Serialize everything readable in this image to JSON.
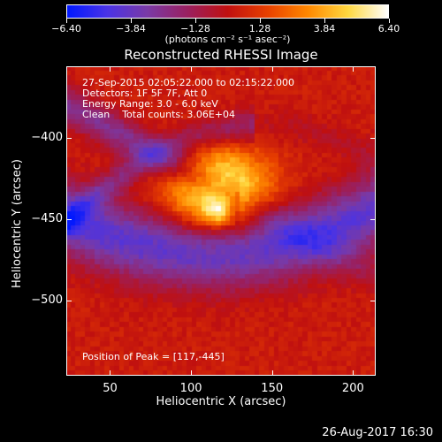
{
  "colorbar": {
    "ticks": [
      "−6.40",
      "−3.84",
      "−1.28",
      "1.28",
      "3.84",
      "6.40"
    ],
    "units_text": "(photons cm⁻² s⁻¹ asec⁻²)",
    "colors": [
      "#0018ff",
      "#4a33e6",
      "#7a3aa6",
      "#9a2060",
      "#c01010",
      "#e84000",
      "#ff8800",
      "#ffd840",
      "#ffffff"
    ]
  },
  "chart_data": {
    "type": "heatmap",
    "title": "Reconstructed RHESSI Image",
    "xlabel": "Heliocentric X (arcsec)",
    "ylabel": "Heliocentric Y (arcsec)",
    "xlim": [
      23,
      214
    ],
    "ylim": [
      -546,
      -356
    ],
    "xticks": [
      50,
      100,
      150,
      200
    ],
    "yticks": [
      -400,
      -450,
      -500
    ],
    "vrange": [
      -6.4,
      6.4
    ],
    "peak": [
      117,
      -445
    ],
    "annotations": [
      "27-Sep-2015 02:05:22.000 to 02:15:22.000",
      "Detectors: 1F 5F 7F, Att 0",
      "Energy Range: 3.0 - 6.0 keV",
      "Clean    Total counts: 3.06E+04"
    ],
    "peak_label": "Position of Peak = [117,-445]"
  },
  "footer": {
    "timestamp": "26-Aug-2017 16:30"
  }
}
